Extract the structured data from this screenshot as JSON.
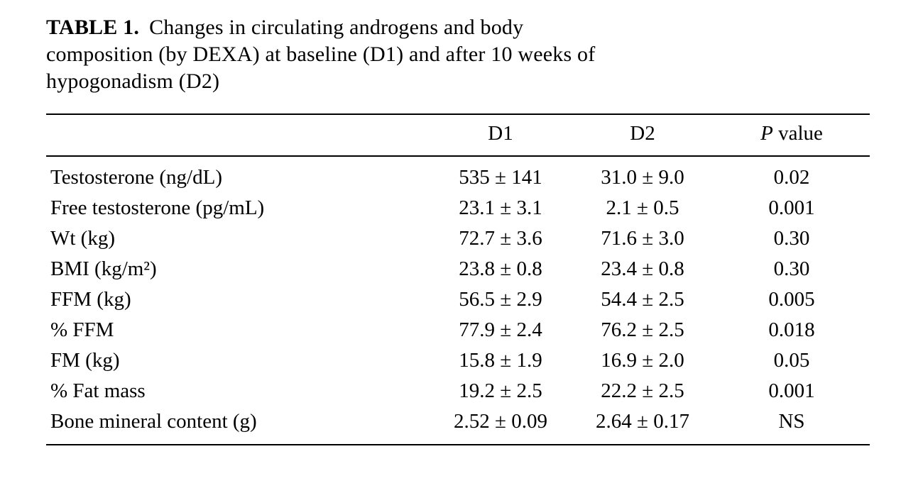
{
  "caption": {
    "label": "TABLE 1.",
    "line1": "Changes in circulating androgens and body",
    "line2": "composition (by DEXA) at baseline (D1) and after 10 weeks of",
    "line3": "hypogonadism (D2)"
  },
  "table": {
    "headers": {
      "col_d1": "D1",
      "col_d2": "D2",
      "p_italic": "P",
      "p_rest": " value"
    },
    "rows": [
      {
        "label": "Testosterone (ng/dL)",
        "d1": "535 ± 141",
        "d2": "31.0 ± 9.0",
        "p": "0.02"
      },
      {
        "label": "Free testosterone (pg/mL)",
        "d1": "23.1 ± 3.1",
        "d2": "2.1 ± 0.5",
        "p": "0.001"
      },
      {
        "label": "Wt (kg)",
        "d1": "72.7 ± 3.6",
        "d2": "71.6 ± 3.0",
        "p": "0.30"
      },
      {
        "label": "BMI (kg/m²)",
        "d1": "23.8 ± 0.8",
        "d2": "23.4 ± 0.8",
        "p": "0.30"
      },
      {
        "label": "FFM (kg)",
        "d1": "56.5 ± 2.9",
        "d2": "54.4 ± 2.5",
        "p": "0.005"
      },
      {
        "label": "% FFM",
        "d1": "77.9 ± 2.4",
        "d2": "76.2 ± 2.5",
        "p": "0.018"
      },
      {
        "label": "FM (kg)",
        "d1": "15.8 ± 1.9",
        "d2": "16.9 ± 2.0",
        "p": "0.05"
      },
      {
        "label": "% Fat mass",
        "d1": "19.2 ± 2.5",
        "d2": "22.2 ± 2.5",
        "p": "0.001"
      },
      {
        "label": "Bone mineral content (g)",
        "d1": "2.52 ± 0.09",
        "d2": "2.64 ± 0.17",
        "p": "NS"
      }
    ]
  }
}
